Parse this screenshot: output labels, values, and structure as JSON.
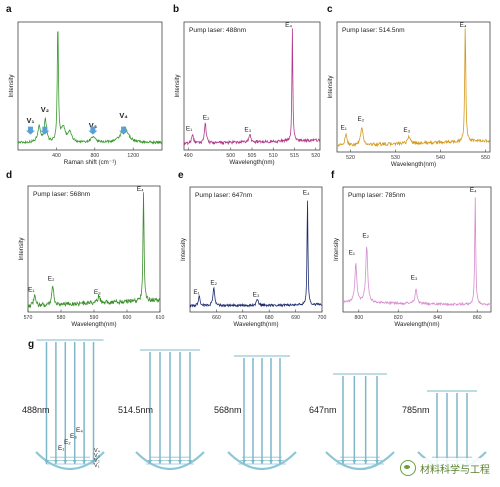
{
  "chart_data": [
    {
      "panel": "a",
      "type": "line",
      "color": "#3a9a2e",
      "pump": "",
      "xlabel": "Raman shift (cm⁻¹)",
      "ylabel": "Intensity",
      "xlim": [
        0,
        1500
      ],
      "xticks": [
        "400",
        "800",
        "1200"
      ],
      "peaks": [
        {
          "x": 220,
          "h": 0.13,
          "w": 18
        },
        {
          "x": 285,
          "h": 0.18,
          "w": 14
        },
        {
          "x": 415,
          "h": 0.97,
          "w": 7
        },
        {
          "x": 470,
          "h": 0.12,
          "w": 25
        },
        {
          "x": 540,
          "h": 0.08,
          "w": 22
        },
        {
          "x": 780,
          "h": 0.04,
          "w": 30
        },
        {
          "x": 1110,
          "h": 0.12,
          "w": 45
        }
      ],
      "baseline": 0.06,
      "noise": 0.01,
      "labels": [
        {
          "text": "V₁",
          "x": 130,
          "y": 0.22
        },
        {
          "text": "V₂",
          "x": 280,
          "y": 0.31
        },
        {
          "text": "V₃",
          "x": 780,
          "y": 0.18
        },
        {
          "text": "V₄",
          "x": 1100,
          "y": 0.26
        }
      ],
      "arrows": [
        130,
        280,
        780,
        1100
      ]
    },
    {
      "panel": "b",
      "type": "line",
      "color": "#b23a8a",
      "pump": "Pump laser: 488nm",
      "xlabel": "Wavelength(nm)",
      "ylabel": "Intensity",
      "xlim": [
        489,
        521
      ],
      "xticks": [
        "490",
        "500",
        "505",
        "510",
        "515",
        "520"
      ],
      "peaks": [
        {
          "x": 491.0,
          "h": 0.08,
          "w": 0.25
        },
        {
          "x": 494.0,
          "h": 0.16,
          "w": 0.25
        },
        {
          "x": 504.5,
          "h": 0.06,
          "w": 0.25
        },
        {
          "x": 514.5,
          "h": 0.95,
          "w": 0.12
        }
      ],
      "baseline": 0.05,
      "noise": 0.012,
      "slope": 0.03,
      "labels": [
        {
          "text": "E₁",
          "x": 490.2,
          "y": 0.16
        },
        {
          "text": "E₂",
          "x": 494.2,
          "y": 0.25
        },
        {
          "text": "E₃",
          "x": 504.0,
          "y": 0.15
        },
        {
          "text": "E₄",
          "x": 513.6,
          "y": 1.0
        }
      ]
    },
    {
      "panel": "c",
      "type": "line",
      "color": "#d39a1f",
      "pump": "Pump laser: 514.5nm",
      "xlabel": "Wavelength(nm)",
      "ylabel": "Intensity",
      "xlim": [
        517,
        551
      ],
      "xticks": [
        "520",
        "530",
        "540",
        "550"
      ],
      "peaks": [
        {
          "x": 519.0,
          "h": 0.08,
          "w": 0.3
        },
        {
          "x": 522.5,
          "h": 0.14,
          "w": 0.3
        },
        {
          "x": 533.0,
          "h": 0.06,
          "w": 0.3
        },
        {
          "x": 545.5,
          "h": 0.95,
          "w": 0.14
        }
      ],
      "baseline": 0.05,
      "noise": 0.012,
      "slope": 0.04,
      "labels": [
        {
          "text": "E₁",
          "x": 518.5,
          "y": 0.18
        },
        {
          "text": "E₂",
          "x": 522.3,
          "y": 0.25
        },
        {
          "text": "E₃",
          "x": 532.5,
          "y": 0.16
        },
        {
          "text": "E₄",
          "x": 545.0,
          "y": 1.0
        }
      ]
    },
    {
      "panel": "d",
      "type": "line",
      "color": "#3a8f2a",
      "pump": "Pump laser: 568nm",
      "xlabel": "Wavelength(nm)",
      "ylabel": "Intensity",
      "xlim": [
        570,
        610
      ],
      "xticks": [
        "570",
        "580",
        "590",
        "600",
        "610"
      ],
      "peaks": [
        {
          "x": 572.0,
          "h": 0.08,
          "w": 0.35
        },
        {
          "x": 577.5,
          "h": 0.16,
          "w": 0.35
        },
        {
          "x": 591.5,
          "h": 0.06,
          "w": 0.35
        },
        {
          "x": 605.0,
          "h": 0.96,
          "w": 0.18
        }
      ],
      "baseline": 0.05,
      "noise": 0.018,
      "slope": 0.05,
      "labels": [
        {
          "text": "E₁",
          "x": 571.0,
          "y": 0.17
        },
        {
          "text": "E₂",
          "x": 577.0,
          "y": 0.26
        },
        {
          "text": "E₃",
          "x": 591.0,
          "y": 0.15
        },
        {
          "text": "E₄",
          "x": 604.0,
          "y": 1.0
        }
      ]
    },
    {
      "panel": "e",
      "type": "line",
      "color": "#1e2c6e",
      "pump": "Pump laser: 647nm",
      "xlabel": "Wavelength(nm)",
      "ylabel": "Intensity",
      "xlim": [
        650,
        700
      ],
      "xticks": [
        "660",
        "670",
        "680",
        "690",
        "700"
      ],
      "peaks": [
        {
          "x": 653.5,
          "h": 0.08,
          "w": 0.4
        },
        {
          "x": 659.0,
          "h": 0.15,
          "w": 0.4
        },
        {
          "x": 675.5,
          "h": 0.05,
          "w": 0.4
        },
        {
          "x": 694.5,
          "h": 0.9,
          "w": 0.2
        }
      ],
      "baseline": 0.05,
      "noise": 0.01,
      "slope": 0.01,
      "labels": [
        {
          "text": "E₁",
          "x": 652.5,
          "y": 0.15
        },
        {
          "text": "E₂",
          "x": 659.0,
          "y": 0.23
        },
        {
          "text": "E₃",
          "x": 675.0,
          "y": 0.13
        },
        {
          "text": "E₄",
          "x": 694.0,
          "y": 0.98
        }
      ]
    },
    {
      "panel": "f",
      "type": "line",
      "color": "#d68fcf",
      "pump": "Pump laser: 785nm",
      "xlabel": "Wavelength(nm)",
      "ylabel": "Intensity",
      "xlim": [
        792,
        867
      ],
      "xticks": [
        "800",
        "820",
        "840",
        "860"
      ],
      "peaks": [
        {
          "x": 798.5,
          "h": 0.32,
          "w": 0.6
        },
        {
          "x": 804.0,
          "h": 0.47,
          "w": 0.6
        },
        {
          "x": 829.0,
          "h": 0.12,
          "w": 0.6
        },
        {
          "x": 859.0,
          "h": 0.9,
          "w": 0.3
        }
      ],
      "baseline": 0.08,
      "noise": 0.01,
      "slope": -0.02,
      "labels": [
        {
          "text": "E₁",
          "x": 796.5,
          "y": 0.48
        },
        {
          "text": "E₂",
          "x": 803.5,
          "y": 0.62
        },
        {
          "text": "E₃",
          "x": 828.0,
          "y": 0.27
        },
        {
          "text": "E₄",
          "x": 858.0,
          "y": 1.0
        }
      ]
    }
  ],
  "panel_g": {
    "label": "g",
    "wavelengths": [
      "488nm",
      "514.5nm",
      "568nm",
      "647nm",
      "785nm"
    ],
    "beam_counts": [
      6,
      5,
      5,
      4,
      4
    ],
    "level_labels": [
      "E₄",
      "E₃",
      "E₂",
      "E₁"
    ],
    "vib_labels": [
      "V₄",
      "V₃",
      "V₂",
      "V₁"
    ],
    "beam_color": "#7fb7c8",
    "well_color": "#8ec6d6"
  },
  "watermark": "材料科学与工程"
}
